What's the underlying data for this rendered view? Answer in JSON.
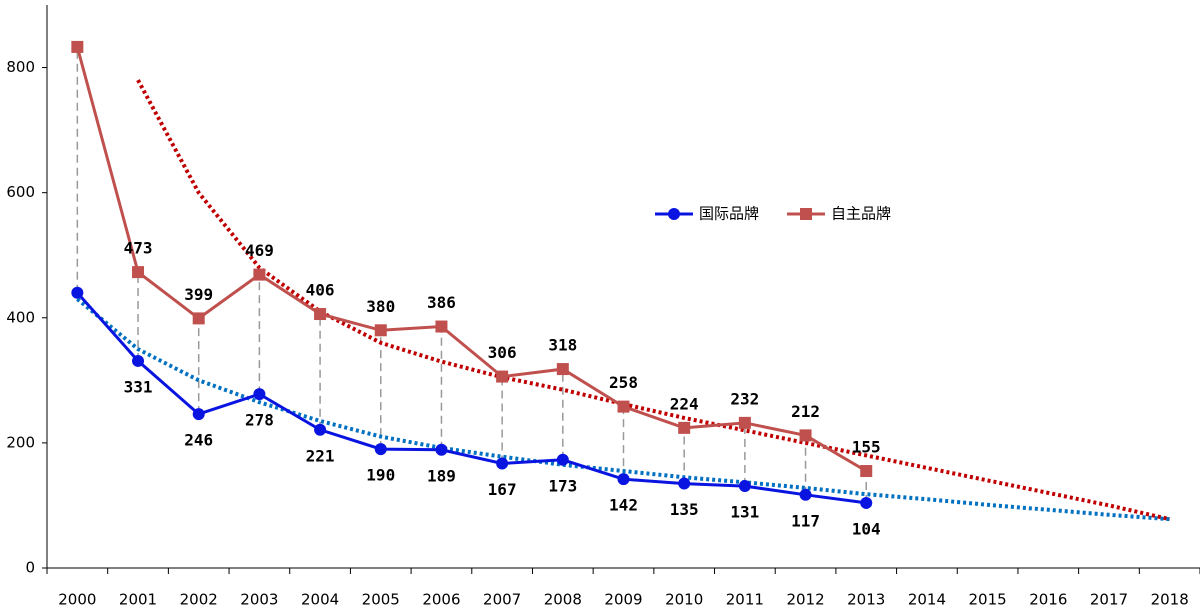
{
  "chart_data": {
    "type": "line",
    "categories": [
      "2000",
      "2001",
      "2002",
      "2003",
      "2004",
      "2005",
      "2006",
      "2007",
      "2008",
      "2009",
      "2010",
      "2011",
      "2012",
      "2013",
      "2014",
      "2015",
      "2016",
      "2017",
      "2018"
    ],
    "series": [
      {
        "name": "国际品牌",
        "color": "#0a14e0",
        "marker": "circle",
        "values": [
          440,
          331,
          246,
          278,
          221,
          190,
          189,
          167,
          173,
          142,
          135,
          131,
          117,
          104,
          null,
          null,
          null,
          null,
          null
        ],
        "value_labels": [
          null,
          "331",
          "246",
          "278",
          "221",
          "190",
          "189",
          "167",
          "173",
          "142",
          "135",
          "131",
          "117",
          "104",
          null,
          null,
          null,
          null,
          null
        ],
        "label_position": "below"
      },
      {
        "name": "自主品牌",
        "color": "#c0504d",
        "marker": "square",
        "values": [
          833,
          473,
          399,
          469,
          406,
          380,
          386,
          306,
          318,
          258,
          224,
          232,
          212,
          155,
          null,
          null,
          null,
          null,
          null
        ],
        "value_labels": [
          null,
          "473",
          "399",
          "469",
          "406",
          "380",
          "386",
          "306",
          "318",
          "258",
          "224",
          "232",
          "212",
          "155",
          null,
          null,
          null,
          null,
          null
        ],
        "label_position": "above"
      }
    ],
    "trendlines": [
      {
        "color": "#0070c0",
        "values": [
          430,
          350,
          300,
          265,
          235,
          210,
          192,
          178,
          165,
          155,
          145,
          137,
          128,
          118,
          110,
          101,
          93,
          85,
          78
        ]
      },
      {
        "color": "#c00000",
        "values": [
          null,
          780,
          600,
          480,
          410,
          360,
          330,
          305,
          285,
          262,
          240,
          220,
          200,
          180,
          160,
          140,
          120,
          100,
          78
        ]
      }
    ],
    "drop_lines": true,
    "ylim": [
      0,
      900
    ],
    "yticks": [
      0,
      200,
      400,
      600,
      800
    ],
    "grid": false,
    "legend": "right"
  }
}
